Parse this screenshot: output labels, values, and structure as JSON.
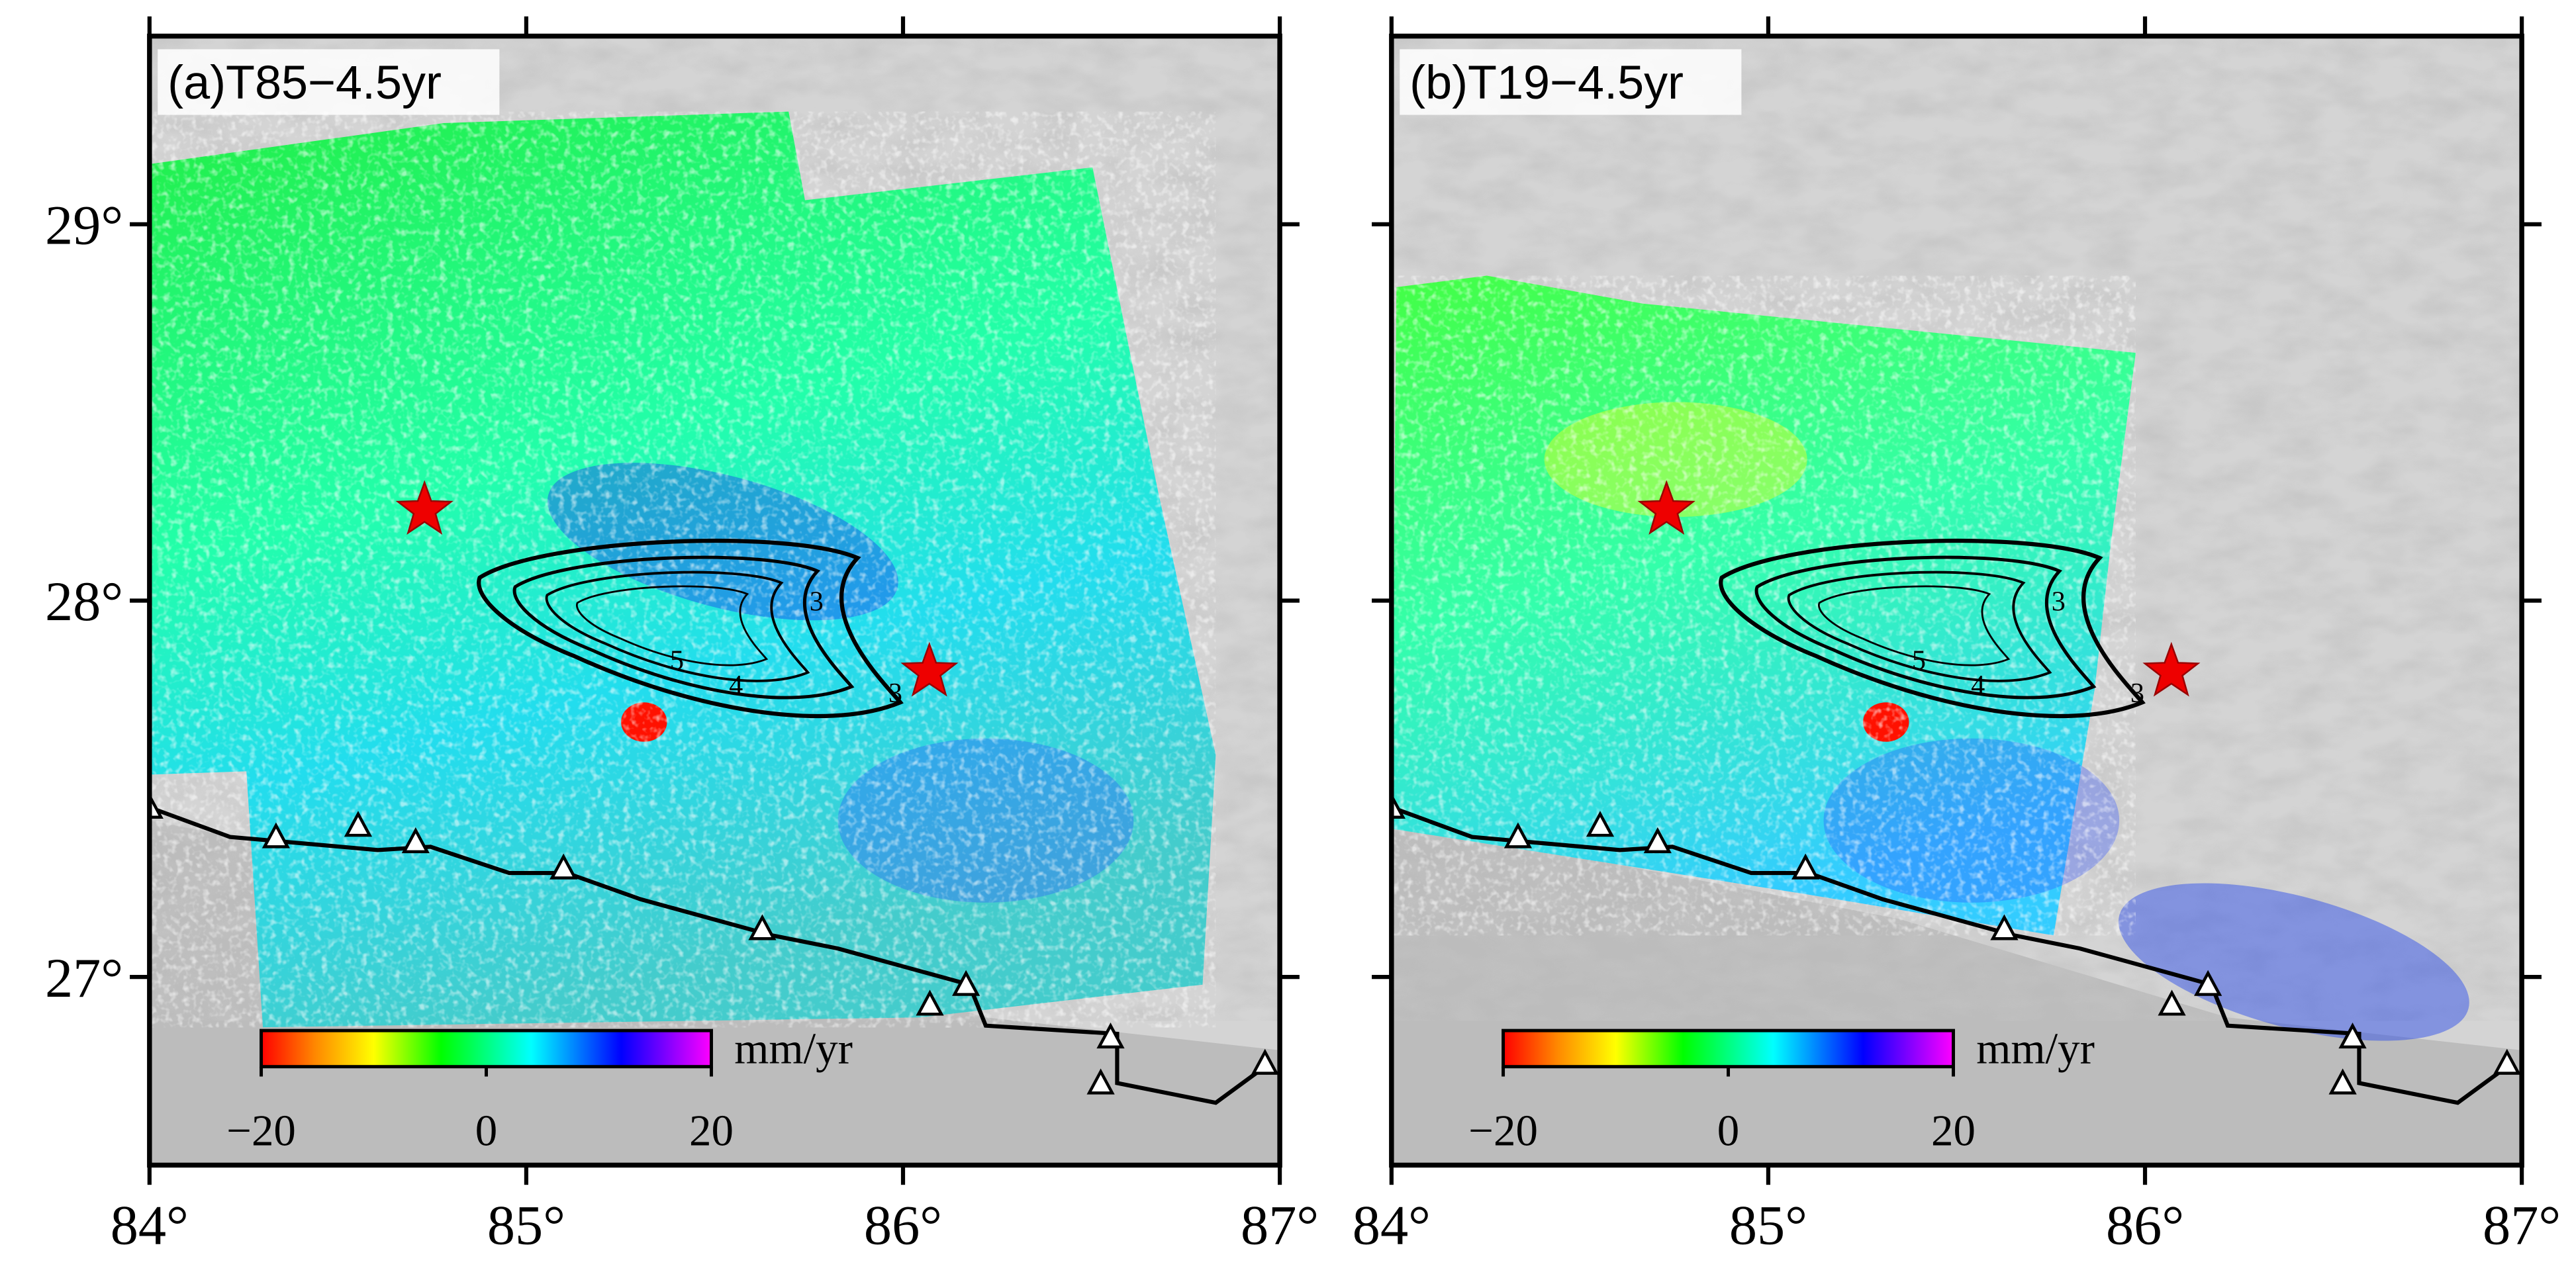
{
  "maps": [
    {
      "title": "(a)T85−4.5yr",
      "xlim": [
        84,
        87
      ],
      "ylim": [
        26.5,
        29.5
      ],
      "xticks": [
        {
          "value": 84,
          "label": "84°"
        },
        {
          "value": 85,
          "label": "85°"
        },
        {
          "value": 86,
          "label": "86°"
        },
        {
          "value": 87,
          "label": "87°"
        }
      ],
      "yticks": [
        {
          "value": 27,
          "label": "27°"
        },
        {
          "value": 28,
          "label": "28°"
        },
        {
          "value": 29,
          "label": "29°"
        }
      ],
      "show_ytick_labels": true,
      "colorbar": {
        "clim": [
          -20,
          20
        ],
        "ticks": [
          {
            "value": -20,
            "label": "−20"
          },
          0,
          20
        ],
        "unit": "mm/yr"
      },
      "contour_labels": [
        3,
        5,
        4,
        3
      ],
      "epicenters": [
        {
          "lon": 84.73,
          "lat": 28.24
        },
        {
          "lon": 86.07,
          "lat": 27.81
        }
      ]
    },
    {
      "title": "(b)T19−4.5yr",
      "xlim": [
        84,
        87
      ],
      "ylim": [
        26.5,
        29.5
      ],
      "xticks": [
        {
          "value": 84,
          "label": "84°"
        },
        {
          "value": 85,
          "label": "85°"
        },
        {
          "value": 86,
          "label": "86°"
        },
        {
          "value": 87,
          "label": "87°"
        }
      ],
      "yticks": [
        27,
        28,
        29
      ],
      "show_ytick_labels": false,
      "colorbar": {
        "clim": [
          -20,
          20
        ],
        "ticks": [
          {
            "value": -20,
            "label": "−20"
          },
          0,
          20
        ],
        "unit": "mm/yr"
      },
      "contour_labels": [
        3,
        5,
        4,
        3
      ],
      "epicenters": [
        {
          "lon": 84.73,
          "lat": 28.24
        },
        {
          "lon": 86.07,
          "lat": 27.81
        }
      ]
    }
  ]
}
